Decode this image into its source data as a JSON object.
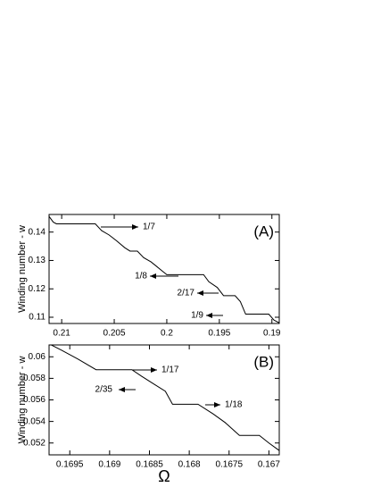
{
  "chart_data": [
    {
      "type": "line",
      "panel_label": "(A)",
      "y_label": "Winding number - w",
      "xlim": [
        0.2112,
        0.1893
      ],
      "xticks": [
        0.21,
        0.205,
        0.2,
        0.195,
        0.19
      ],
      "ylim": [
        0.1078,
        0.1462
      ],
      "yticks": [
        0.11,
        0.12,
        0.13,
        0.14
      ],
      "color": "#000000",
      "x": [
        0.2112,
        0.2108,
        0.2105,
        0.2068,
        0.2062,
        0.2055,
        0.2048,
        0.204,
        0.2035,
        0.2028,
        0.2022,
        0.2015,
        0.201,
        0.2005,
        0.2,
        0.1965,
        0.196,
        0.1952,
        0.1946,
        0.1935,
        0.193,
        0.1925,
        0.1903,
        0.1898,
        0.1893
      ],
      "values": [
        0.1455,
        0.1435,
        0.1429,
        0.1429,
        0.1405,
        0.139,
        0.137,
        0.1345,
        0.1333,
        0.1333,
        0.131,
        0.1295,
        0.128,
        0.1265,
        0.125,
        0.125,
        0.1225,
        0.1205,
        0.1176,
        0.1176,
        0.1155,
        0.1111,
        0.1111,
        0.109,
        0.108
      ],
      "annotations": [
        "1/7",
        "1/8",
        "2/17",
        "1/9"
      ]
    },
    {
      "type": "line",
      "panel_label": "(B)",
      "y_label": "Winding number - w",
      "x_label": "Ω",
      "xlim": [
        0.16976,
        0.16687
      ],
      "xticks": [
        0.1695,
        0.169,
        0.1685,
        0.168,
        0.1675,
        0.167
      ],
      "ylim": [
        0.0509,
        0.0611
      ],
      "yticks": [
        0.052,
        0.054,
        0.056,
        0.058,
        0.06
      ],
      "color": "#000000",
      "x": [
        0.16976,
        0.1696,
        0.1694,
        0.16917,
        0.16872,
        0.1686,
        0.16845,
        0.1683,
        0.16821,
        0.16789,
        0.1677,
        0.16755,
        0.16737,
        0.16712,
        0.167,
        0.16687
      ],
      "values": [
        0.0612,
        0.0606,
        0.0598,
        0.0588,
        0.0588,
        0.0582,
        0.0575,
        0.0568,
        0.0556,
        0.0556,
        0.0547,
        0.0539,
        0.0527,
        0.0527,
        0.052,
        0.0513
      ],
      "annotations": [
        "1/17",
        "2/35",
        "1/18"
      ]
    }
  ]
}
